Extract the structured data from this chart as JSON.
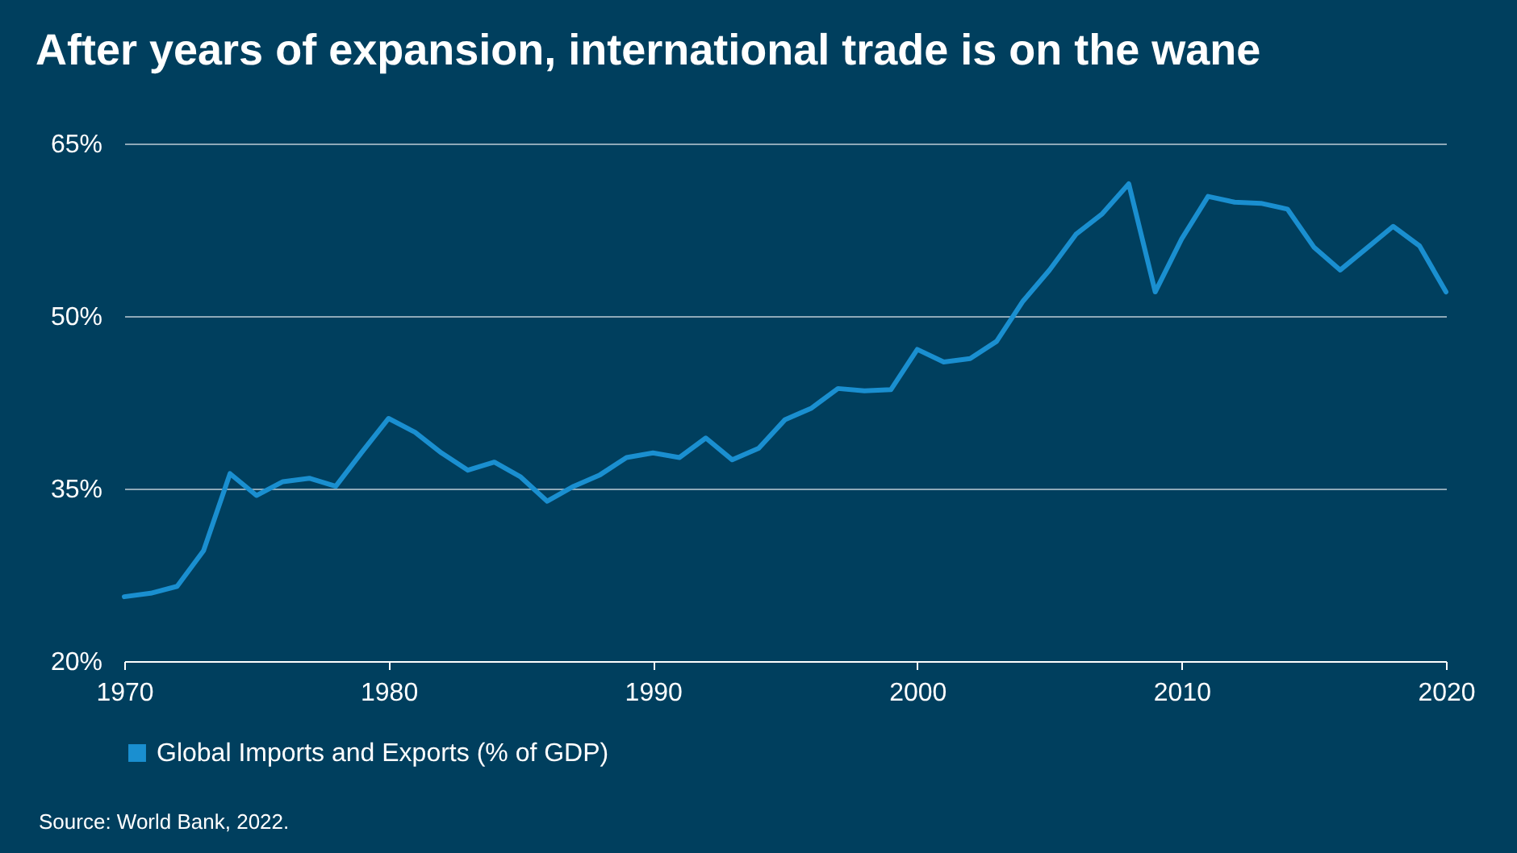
{
  "chart_data": {
    "type": "line",
    "title": "After years of expansion, international trade is on the wane",
    "x": [
      1970,
      1971,
      1972,
      1973,
      1974,
      1975,
      1976,
      1977,
      1978,
      1979,
      1980,
      1981,
      1982,
      1983,
      1984,
      1985,
      1986,
      1987,
      1988,
      1989,
      1990,
      1991,
      1992,
      1993,
      1994,
      1995,
      1996,
      1997,
      1998,
      1999,
      2000,
      2001,
      2002,
      2003,
      2004,
      2005,
      2006,
      2007,
      2008,
      2009,
      2010,
      2011,
      2012,
      2013,
      2014,
      2015,
      2016,
      2017,
      2018,
      2019,
      2020
    ],
    "series": [
      {
        "name": "Global Imports and Exports (% of GDP)",
        "color": "#1a8fd0",
        "values": [
          25.6,
          25.9,
          26.5,
          29.6,
          36.3,
          34.4,
          35.6,
          35.9,
          35.2,
          38.2,
          41.1,
          39.9,
          38.1,
          36.6,
          37.3,
          36.0,
          33.9,
          35.2,
          36.2,
          37.7,
          38.1,
          37.7,
          39.4,
          37.5,
          38.5,
          41.0,
          42.0,
          43.7,
          43.5,
          43.6,
          47.1,
          46.0,
          46.3,
          47.8,
          51.3,
          54.0,
          57.1,
          58.9,
          61.5,
          52.1,
          56.7,
          60.4,
          59.9,
          59.8,
          59.3,
          56.0,
          54.0,
          55.9,
          57.8,
          56.1,
          52.1
        ]
      }
    ],
    "xlim": [
      1970,
      2020
    ],
    "xticks": [
      1970,
      1980,
      1990,
      2000,
      2010,
      2020
    ],
    "ylim": [
      20,
      65
    ],
    "yticks": [
      {
        "value": 20,
        "label": "20%"
      },
      {
        "value": 35,
        "label": "35%"
      },
      {
        "value": 50,
        "label": "50%"
      },
      {
        "value": 65,
        "label": "65%"
      }
    ],
    "grid": "y",
    "legend": "bottom",
    "marker": "none",
    "line_style": "solid",
    "annotations": [
      "Source: World Bank, 2022."
    ]
  }
}
